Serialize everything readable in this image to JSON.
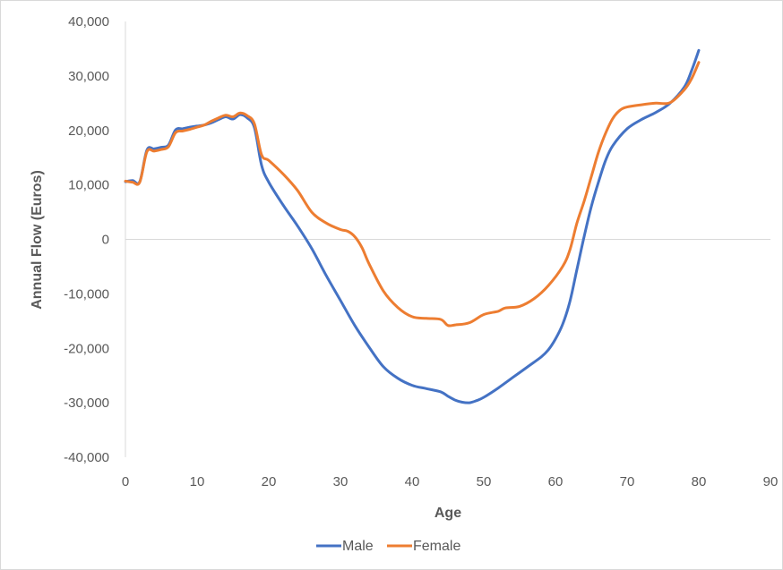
{
  "chart_data": {
    "type": "line",
    "xlabel": "Age",
    "ylabel": "Annual Flow (Euros)",
    "xlim": [
      0,
      90
    ],
    "ylim": [
      -40000,
      40000
    ],
    "x_ticks": [
      "0",
      "10",
      "20",
      "30",
      "40",
      "50",
      "60",
      "70",
      "80",
      "90"
    ],
    "y_ticks": [
      "40,000",
      "30,000",
      "20,000",
      "10,000",
      "0",
      "-10,000",
      "-20,000",
      "-30,000",
      "-40,000"
    ],
    "legend_position": "bottom",
    "grid": false,
    "series": [
      {
        "name": "Male",
        "color": "#4472c4",
        "points": [
          [
            0,
            10600
          ],
          [
            1,
            10800
          ],
          [
            2,
            10600
          ],
          [
            3,
            16400
          ],
          [
            4,
            16600
          ],
          [
            5,
            16900
          ],
          [
            6,
            17300
          ],
          [
            7,
            20100
          ],
          [
            8,
            20300
          ],
          [
            9,
            20600
          ],
          [
            10,
            20800
          ],
          [
            11,
            21000
          ],
          [
            12,
            21400
          ],
          [
            13,
            22000
          ],
          [
            14,
            22500
          ],
          [
            15,
            22100
          ],
          [
            16,
            22900
          ],
          [
            17,
            22300
          ],
          [
            18,
            20500
          ],
          [
            19,
            13600
          ],
          [
            20,
            10500
          ],
          [
            22,
            6300
          ],
          [
            24,
            2500
          ],
          [
            26,
            -1700
          ],
          [
            28,
            -6600
          ],
          [
            30,
            -11200
          ],
          [
            32,
            -15800
          ],
          [
            34,
            -19800
          ],
          [
            36,
            -23400
          ],
          [
            38,
            -25500
          ],
          [
            40,
            -26800
          ],
          [
            42,
            -27400
          ],
          [
            44,
            -28000
          ],
          [
            45,
            -28800
          ],
          [
            46,
            -29500
          ],
          [
            47,
            -29900
          ],
          [
            48,
            -30000
          ],
          [
            49,
            -29600
          ],
          [
            50,
            -29000
          ],
          [
            52,
            -27300
          ],
          [
            54,
            -25400
          ],
          [
            56,
            -23500
          ],
          [
            58,
            -21600
          ],
          [
            59,
            -20300
          ],
          [
            60,
            -18300
          ],
          [
            61,
            -15600
          ],
          [
            62,
            -11500
          ],
          [
            63,
            -5500
          ],
          [
            64,
            500
          ],
          [
            65,
            6000
          ],
          [
            66,
            10500
          ],
          [
            67,
            14500
          ],
          [
            68,
            17200
          ],
          [
            70,
            20300
          ],
          [
            72,
            22000
          ],
          [
            74,
            23300
          ],
          [
            76,
            25000
          ],
          [
            78,
            28000
          ],
          [
            79,
            31000
          ],
          [
            80,
            34700
          ]
        ]
      },
      {
        "name": "Female",
        "color": "#ed7d31",
        "points": [
          [
            0,
            10700
          ],
          [
            1,
            10500
          ],
          [
            2,
            10500
          ],
          [
            3,
            16100
          ],
          [
            4,
            16200
          ],
          [
            5,
            16500
          ],
          [
            6,
            17000
          ],
          [
            7,
            19600
          ],
          [
            8,
            19900
          ],
          [
            9,
            20200
          ],
          [
            10,
            20600
          ],
          [
            11,
            21000
          ],
          [
            12,
            21700
          ],
          [
            13,
            22300
          ],
          [
            14,
            22800
          ],
          [
            15,
            22500
          ],
          [
            16,
            23200
          ],
          [
            17,
            22700
          ],
          [
            18,
            21200
          ],
          [
            19,
            15500
          ],
          [
            20,
            14500
          ],
          [
            22,
            12000
          ],
          [
            24,
            9000
          ],
          [
            26,
            5000
          ],
          [
            28,
            3000
          ],
          [
            30,
            1800
          ],
          [
            31,
            1500
          ],
          [
            32,
            500
          ],
          [
            33,
            -1500
          ],
          [
            34,
            -4500
          ],
          [
            36,
            -9500
          ],
          [
            38,
            -12500
          ],
          [
            40,
            -14200
          ],
          [
            42,
            -14500
          ],
          [
            44,
            -14700
          ],
          [
            45,
            -15800
          ],
          [
            46,
            -15700
          ],
          [
            48,
            -15300
          ],
          [
            50,
            -13800
          ],
          [
            52,
            -13200
          ],
          [
            53,
            -12600
          ],
          [
            55,
            -12300
          ],
          [
            57,
            -10900
          ],
          [
            59,
            -8500
          ],
          [
            61,
            -5000
          ],
          [
            62,
            -2000
          ],
          [
            63,
            3000
          ],
          [
            64,
            7000
          ],
          [
            65,
            11500
          ],
          [
            66,
            16000
          ],
          [
            67,
            19500
          ],
          [
            68,
            22200
          ],
          [
            69,
            23700
          ],
          [
            70,
            24300
          ],
          [
            72,
            24700
          ],
          [
            74,
            25000
          ],
          [
            76,
            25100
          ],
          [
            78,
            27500
          ],
          [
            79,
            29500
          ],
          [
            80,
            32500
          ]
        ]
      }
    ]
  }
}
